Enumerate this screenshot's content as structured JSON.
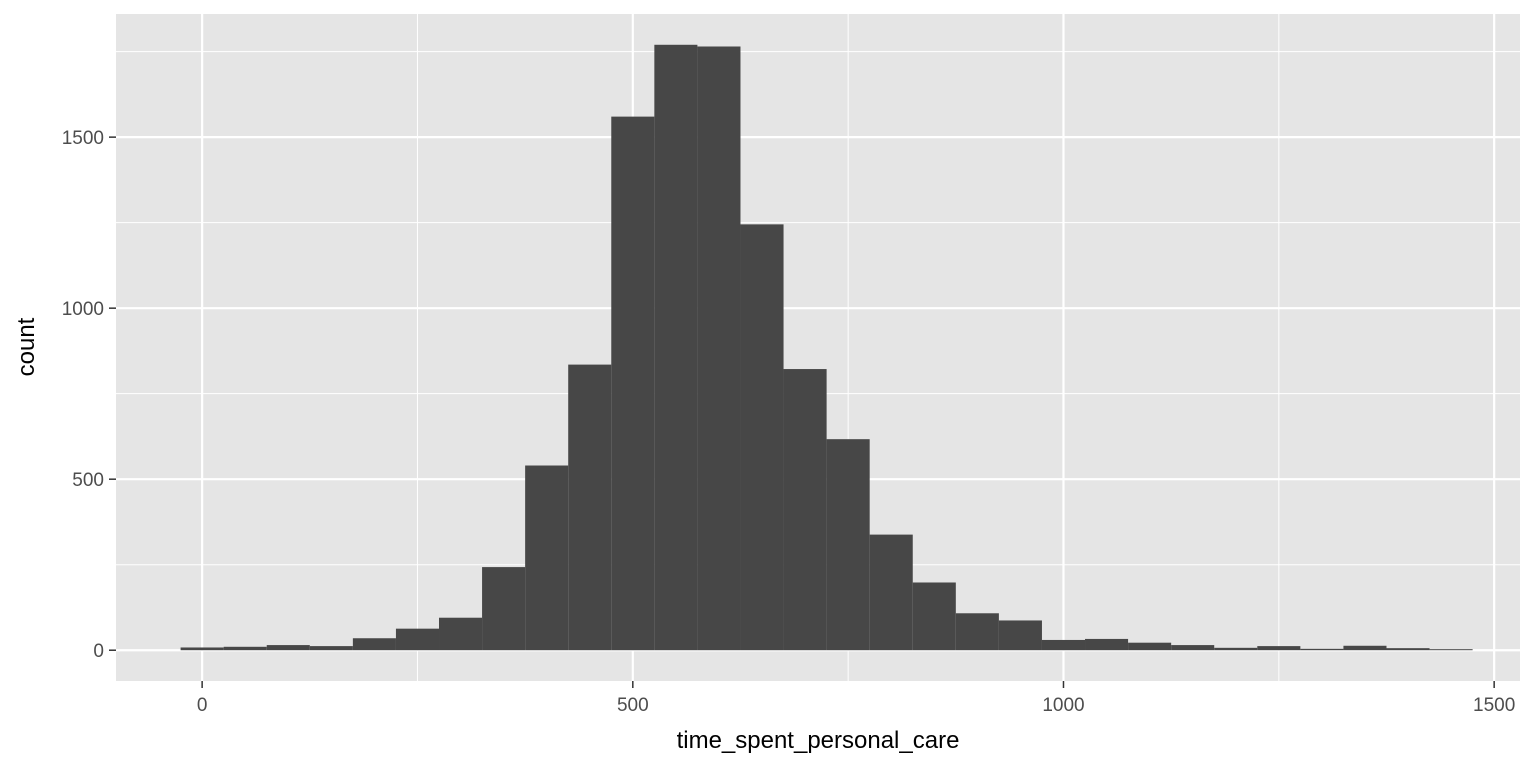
{
  "chart_data": {
    "type": "bar",
    "subtype": "histogram",
    "xlabel": "time_spent_personal_care",
    "ylabel": "count",
    "xlim": [
      -100,
      1530
    ],
    "ylim": [
      -90,
      1860
    ],
    "x_ticks": [
      0,
      500,
      1000,
      1500
    ],
    "y_ticks": [
      0,
      500,
      1000,
      1500
    ],
    "grid": true,
    "colors": {
      "panel": "#e5e5e5",
      "grid": "#ffffff",
      "bar": "#474747",
      "tick_text": "#4d4d4d"
    },
    "bins": [
      {
        "x0": -25,
        "x1": 25,
        "count": 8
      },
      {
        "x0": 25,
        "x1": 75,
        "count": 10
      },
      {
        "x0": 75,
        "x1": 125,
        "count": 15
      },
      {
        "x0": 125,
        "x1": 175,
        "count": 12
      },
      {
        "x0": 175,
        "x1": 225,
        "count": 35
      },
      {
        "x0": 225,
        "x1": 275,
        "count": 63
      },
      {
        "x0": 275,
        "x1": 325,
        "count": 95
      },
      {
        "x0": 325,
        "x1": 375,
        "count": 243
      },
      {
        "x0": 375,
        "x1": 425,
        "count": 540
      },
      {
        "x0": 425,
        "x1": 475,
        "count": 835
      },
      {
        "x0": 475,
        "x1": 525,
        "count": 1560
      },
      {
        "x0": 525,
        "x1": 575,
        "count": 1770
      },
      {
        "x0": 575,
        "x1": 625,
        "count": 1765
      },
      {
        "x0": 625,
        "x1": 675,
        "count": 1245
      },
      {
        "x0": 675,
        "x1": 725,
        "count": 822
      },
      {
        "x0": 725,
        "x1": 775,
        "count": 617
      },
      {
        "x0": 775,
        "x1": 825,
        "count": 338
      },
      {
        "x0": 825,
        "x1": 875,
        "count": 198
      },
      {
        "x0": 875,
        "x1": 925,
        "count": 108
      },
      {
        "x0": 925,
        "x1": 975,
        "count": 87
      },
      {
        "x0": 975,
        "x1": 1025,
        "count": 30
      },
      {
        "x0": 1025,
        "x1": 1075,
        "count": 33
      },
      {
        "x0": 1075,
        "x1": 1125,
        "count": 22
      },
      {
        "x0": 1125,
        "x1": 1175,
        "count": 15
      },
      {
        "x0": 1175,
        "x1": 1225,
        "count": 7
      },
      {
        "x0": 1225,
        "x1": 1275,
        "count": 12
      },
      {
        "x0": 1275,
        "x1": 1325,
        "count": 4
      },
      {
        "x0": 1325,
        "x1": 1375,
        "count": 13
      },
      {
        "x0": 1375,
        "x1": 1425,
        "count": 6
      },
      {
        "x0": 1425,
        "x1": 1475,
        "count": 3
      }
    ]
  }
}
